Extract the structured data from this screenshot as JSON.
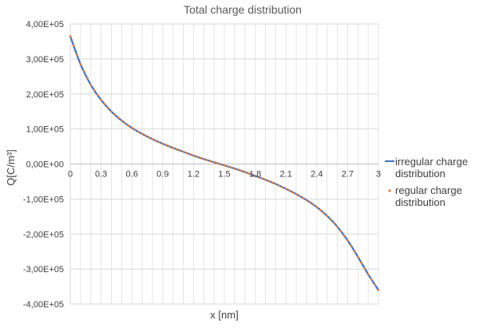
{
  "chart_data": {
    "type": "line",
    "title": "Total charge distribution",
    "xlabel": "x [nm]",
    "ylabel": "Q[C/m³]",
    "xlim": [
      0,
      3
    ],
    "ylim": [
      -400000,
      400000
    ],
    "x_ticks": [
      "0",
      "0.3",
      "0.6",
      "0.9",
      "1.2",
      "1.5",
      "1.8",
      "2.1",
      "2.4",
      "2.7",
      "3"
    ],
    "y_ticks": [
      "4,00E+05",
      "3,00E+05",
      "2,00E+05",
      "1,00E+05",
      "0,00E+00",
      "-1,00E+05",
      "-2,00E+05",
      "-3,00E+05",
      "-4,00E+05"
    ],
    "grid": true,
    "legend_position": "right",
    "series": [
      {
        "name": "irregular charge distribution",
        "style": "line",
        "color": "#4472C4",
        "x": [
          0,
          0.1,
          0.2,
          0.3,
          0.4,
          0.5,
          0.6,
          0.7,
          0.8,
          0.9,
          1.0,
          1.1,
          1.2,
          1.3,
          1.4,
          1.5,
          1.6,
          1.7,
          1.8,
          1.9,
          2.0,
          2.1,
          2.2,
          2.3,
          2.4,
          2.5,
          2.6,
          2.7,
          2.8,
          2.9,
          3.0
        ],
        "y": [
          365000,
          285000,
          226000,
          183000,
          150000,
          124000,
          103000,
          86000,
          71000,
          58000,
          46000,
          35000,
          24000,
          14000,
          5000,
          -4000,
          -13000,
          -23000,
          -34000,
          -45000,
          -57000,
          -71000,
          -86000,
          -103000,
          -123000,
          -148000,
          -179000,
          -218000,
          -265000,
          -315000,
          -360000
        ]
      },
      {
        "name": "regular charge distribution",
        "style": "dots",
        "color": "#ED7D31",
        "x": [
          0,
          0.1,
          0.2,
          0.3,
          0.4,
          0.5,
          0.6,
          0.7,
          0.8,
          0.9,
          1.0,
          1.1,
          1.2,
          1.3,
          1.4,
          1.5,
          1.6,
          1.7,
          1.8,
          1.9,
          2.0,
          2.1,
          2.2,
          2.3,
          2.4,
          2.5,
          2.6,
          2.7,
          2.8,
          2.9,
          3.0
        ],
        "y": [
          365000,
          285000,
          226000,
          183000,
          150000,
          124000,
          103000,
          86000,
          71000,
          58000,
          46000,
          35000,
          24000,
          14000,
          5000,
          -4000,
          -13000,
          -23000,
          -34000,
          -45000,
          -57000,
          -71000,
          -86000,
          -103000,
          -123000,
          -148000,
          -179000,
          -218000,
          -265000,
          -315000,
          -360000
        ]
      }
    ],
    "legend": {
      "irregular_line1": "irregular charge",
      "irregular_line2": "distribution",
      "regular_line1": "regular charge",
      "regular_line2": "distribution"
    }
  }
}
